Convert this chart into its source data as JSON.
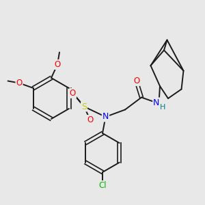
{
  "bg_color": "#e8e8e8",
  "bond_color": "#1a1a1a",
  "atom_colors": {
    "O": "#ff0000",
    "S": "#cccc00",
    "N": "#0000ff",
    "H": "#008080",
    "Cl": "#00bb00",
    "C": "#1a1a1a"
  },
  "figsize": [
    3.0,
    3.0
  ],
  "dpi": 100
}
